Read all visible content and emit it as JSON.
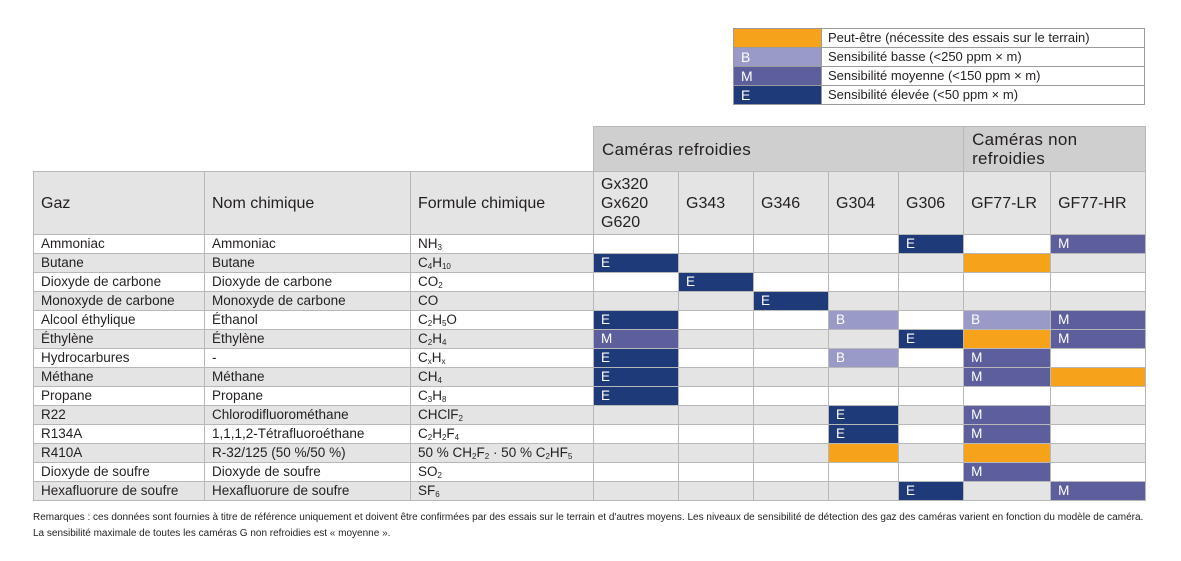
{
  "legend": [
    {
      "code": "",
      "level": "P",
      "color": "#f7a21b",
      "label": "Peut-être (nécessite des essais sur le terrain)"
    },
    {
      "code": "B",
      "level": "B",
      "color": "#9a9ac8",
      "label": "Sensibilité basse (<250 ppm × m)"
    },
    {
      "code": "M",
      "level": "M",
      "color": "#5c5f9b",
      "label": "Sensibilité moyenne (<150 ppm × m)"
    },
    {
      "code": "E",
      "level": "E",
      "color": "#1f3a78",
      "label": "Sensibilité élevée (<50 ppm × m)"
    }
  ],
  "groups": {
    "cooled": "Caméras refroidies",
    "uncooled": "Caméras non refroidies"
  },
  "headers": {
    "gas": "Gaz",
    "chemical_name": "Nom chimique",
    "formula": "Formule chimique",
    "cameras": [
      "Gx320\nGx620\nG620",
      "G343",
      "G346",
      "G304",
      "G306",
      "GF77-LR",
      "GF77-HR"
    ]
  },
  "rows": [
    {
      "gas": "Ammoniac",
      "name": "Ammoniac",
      "formula": [
        [
          "NH",
          ""
        ],
        [
          "3",
          "s"
        ]
      ],
      "cells": [
        "",
        "",
        "",
        "",
        "E",
        "",
        "M"
      ]
    },
    {
      "gas": "Butane",
      "name": "Butane",
      "formula": [
        [
          "C",
          ""
        ],
        [
          "4",
          "s"
        ],
        [
          "H",
          ""
        ],
        [
          "10",
          "s"
        ]
      ],
      "cells": [
        "E",
        "",
        "",
        "",
        "",
        "P",
        ""
      ]
    },
    {
      "gas": "Dioxyde de carbone",
      "name": "Dioxyde de carbone",
      "formula": [
        [
          "CO",
          ""
        ],
        [
          "2",
          "s"
        ]
      ],
      "cells": [
        "",
        "E",
        "",
        "",
        "",
        "",
        ""
      ]
    },
    {
      "gas": "Monoxyde de carbone",
      "name": "Monoxyde de carbone",
      "formula": [
        [
          "CO",
          ""
        ]
      ],
      "cells": [
        "",
        "",
        "E",
        "",
        "",
        "",
        ""
      ]
    },
    {
      "gas": "Alcool éthylique",
      "name": "Éthanol",
      "formula": [
        [
          "C",
          ""
        ],
        [
          "2",
          "s"
        ],
        [
          "H",
          ""
        ],
        [
          "5",
          "s"
        ],
        [
          "O",
          ""
        ]
      ],
      "cells": [
        "E",
        "",
        "",
        "B",
        "",
        "B",
        "M"
      ]
    },
    {
      "gas": "Éthylène",
      "name": "Éthylène",
      "formula": [
        [
          "C",
          ""
        ],
        [
          "2",
          "s"
        ],
        [
          "H",
          ""
        ],
        [
          "4",
          "s"
        ]
      ],
      "cells": [
        "M",
        "",
        "",
        "",
        "E",
        "P",
        "M"
      ]
    },
    {
      "gas": "Hydrocarbures",
      "name": "-",
      "formula": [
        [
          "C",
          ""
        ],
        [
          "x",
          "s"
        ],
        [
          "H",
          ""
        ],
        [
          "x",
          "s"
        ]
      ],
      "cells": [
        "E",
        "",
        "",
        "B",
        "",
        "M",
        ""
      ]
    },
    {
      "gas": "Méthane",
      "name": "Méthane",
      "formula": [
        [
          "CH",
          ""
        ],
        [
          "4",
          "s"
        ]
      ],
      "cells": [
        "E",
        "",
        "",
        "",
        "",
        "M",
        "P"
      ]
    },
    {
      "gas": "Propane",
      "name": "Propane",
      "formula": [
        [
          "C",
          ""
        ],
        [
          "3",
          "s"
        ],
        [
          "H",
          ""
        ],
        [
          "8",
          "s"
        ]
      ],
      "cells": [
        "E",
        "",
        "",
        "",
        "",
        "",
        ""
      ]
    },
    {
      "gas": "R22",
      "name": "Chlorodifluorométhane",
      "formula": [
        [
          "CHClF",
          ""
        ],
        [
          "2",
          "s"
        ]
      ],
      "cells": [
        "",
        "",
        "",
        "E",
        "",
        "M",
        ""
      ]
    },
    {
      "gas": "R134A",
      "name": "1,1,1,2-Tétrafluoroéthane",
      "formula": [
        [
          "C",
          ""
        ],
        [
          "2",
          "s"
        ],
        [
          "H",
          ""
        ],
        [
          "2",
          "s"
        ],
        [
          "F",
          ""
        ],
        [
          "4",
          "s"
        ]
      ],
      "cells": [
        "",
        "",
        "",
        "E",
        "",
        "M",
        ""
      ]
    },
    {
      "gas": "R410A",
      "name": "R-32/125 (50 %/50 %)",
      "formula": [
        [
          "50 % CH",
          ""
        ],
        [
          "2",
          "s"
        ],
        [
          "F",
          ""
        ],
        [
          "2",
          "s"
        ],
        [
          " · 50 % C",
          ""
        ],
        [
          "2",
          "s"
        ],
        [
          "HF",
          ""
        ],
        [
          "5",
          "s"
        ]
      ],
      "cells": [
        "",
        "",
        "",
        "P",
        "",
        "P",
        ""
      ]
    },
    {
      "gas": "Dioxyde de soufre",
      "name": "Dioxyde de soufre",
      "formula": [
        [
          "SO",
          ""
        ],
        [
          "2",
          "s"
        ]
      ],
      "cells": [
        "",
        "",
        "",
        "",
        "",
        "M",
        ""
      ]
    },
    {
      "gas": "Hexafluorure de soufre",
      "name": "Hexafluorure de soufre",
      "formula": [
        [
          "SF",
          ""
        ],
        [
          "6",
          "s"
        ]
      ],
      "cells": [
        "",
        "",
        "",
        "",
        "E",
        "",
        "M"
      ]
    }
  ],
  "remark": [
    "Remarques : ces données sont fournies à titre de référence uniquement et doivent être confirmées par des essais sur le terrain et d'autres moyens. Les niveaux de sensibilité de détection des gaz des caméras varient en fonction du modèle de caméra.",
    "La sensibilité maximale de toutes les caméras G non refroidies est « moyenne »."
  ]
}
